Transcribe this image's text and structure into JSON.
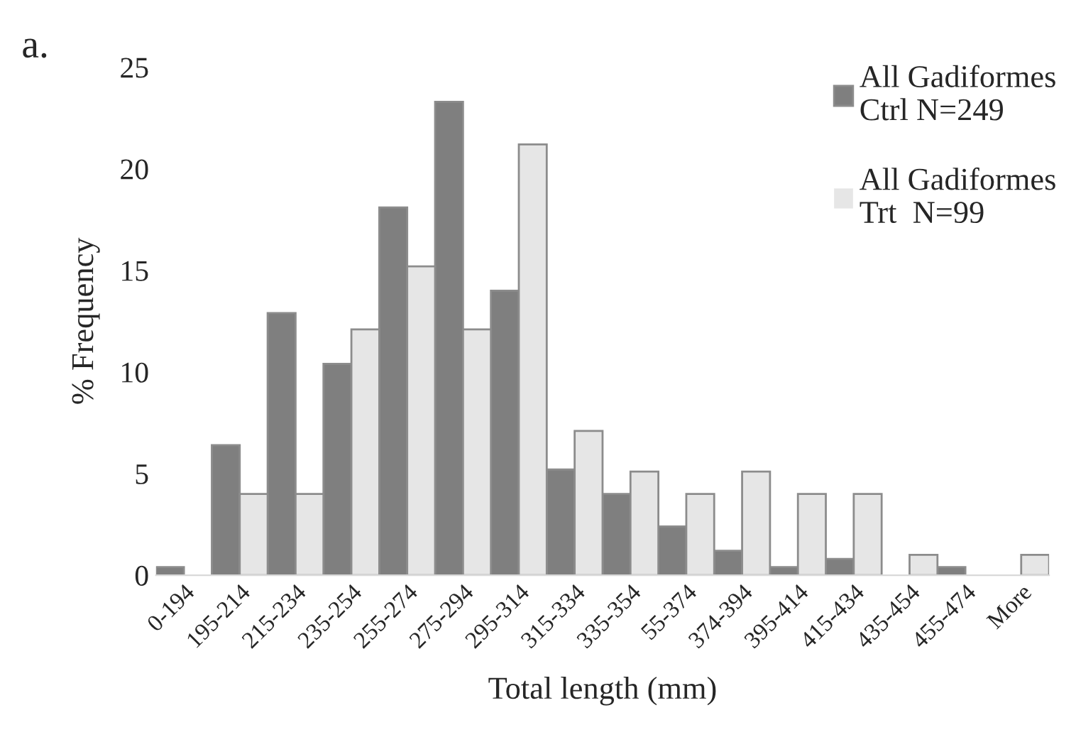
{
  "chart_data": {
    "type": "bar",
    "title": "a.",
    "xlabel": "Total length (mm)",
    "ylabel": "% Frequency",
    "categories": [
      "0-194",
      "195-214",
      "215-234",
      "235-254",
      "255-274",
      "275-294",
      "295-314",
      "315-334",
      "335-354",
      "55-374",
      "374-394",
      "395-414",
      "415-434",
      "435-454",
      "455-474",
      "More"
    ],
    "series": [
      {
        "name": "All Gadiformes\nCtrl N=249",
        "color": "#7f7f7f",
        "values": [
          0.4,
          6.4,
          12.9,
          10.4,
          18.1,
          23.3,
          14.0,
          5.2,
          4.0,
          2.4,
          1.2,
          0.4,
          0.8,
          0,
          0.4,
          0
        ]
      },
      {
        "name": "All Gadiformes\nTrt  N=99",
        "color": "#e6e6e6",
        "values": [
          0,
          4.0,
          4.0,
          12.1,
          15.2,
          12.1,
          21.2,
          7.1,
          5.1,
          4.0,
          5.1,
          4.0,
          4.0,
          1.0,
          0,
          1.0
        ]
      }
    ],
    "ylim": [
      0,
      25
    ],
    "yticks": [
      0,
      5,
      10,
      15,
      20,
      25
    ],
    "grid": false,
    "legend": "top right"
  }
}
